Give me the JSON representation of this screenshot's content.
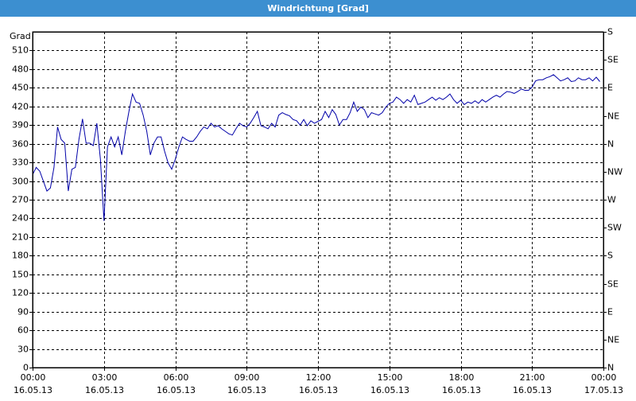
{
  "chart_data": {
    "type": "line",
    "title": "Windrichtung [Grad]",
    "y_label": "Grad",
    "x": [
      0,
      9,
      18,
      27,
      36,
      45,
      54,
      63,
      72,
      81,
      90,
      99,
      108,
      117,
      126,
      135,
      144,
      153,
      162,
      171,
      180,
      189,
      198,
      207,
      216,
      225,
      234,
      243,
      252,
      261,
      270,
      279,
      288,
      297,
      306,
      315,
      324,
      333,
      342,
      351,
      360,
      369,
      378,
      387,
      396,
      405,
      414,
      423,
      432,
      441,
      450,
      459,
      468,
      477,
      486,
      495,
      504,
      513,
      522,
      531,
      540,
      549,
      558,
      567,
      576,
      585,
      594,
      603,
      612,
      621,
      630,
      639,
      648,
      657,
      666,
      675,
      684,
      693,
      702,
      711,
      720,
      729,
      738,
      747,
      756,
      765,
      774,
      783,
      792,
      801,
      810,
      819,
      828,
      837,
      846,
      855,
      864,
      873,
      882,
      891,
      900,
      909,
      918,
      927,
      936,
      945,
      954,
      963,
      972,
      981,
      990,
      999,
      1008,
      1017,
      1026,
      1035,
      1044,
      1053,
      1062,
      1071,
      1080,
      1089,
      1098,
      1107,
      1116,
      1125,
      1134,
      1143,
      1152,
      1161,
      1170,
      1179,
      1188,
      1197,
      1206,
      1215,
      1224,
      1233,
      1242,
      1251,
      1260,
      1269,
      1278,
      1287,
      1296,
      1305,
      1314,
      1323,
      1332,
      1341,
      1350,
      1359,
      1368,
      1377,
      1386,
      1395,
      1404,
      1413,
      1422,
      1431
    ],
    "series": [
      {
        "name": "Windrichtung",
        "color": "#0000a8",
        "values": [
          310,
          322,
          316,
          300,
          284,
          289,
          322,
          387,
          367,
          361,
          284,
          319,
          322,
          367,
          400,
          361,
          361,
          357,
          393,
          335,
          236,
          355,
          371,
          355,
          371,
          342,
          380,
          412,
          440,
          427,
          425,
          406,
          380,
          342,
          361,
          371,
          371,
          348,
          329,
          319,
          335,
          355,
          371,
          367,
          364,
          364,
          371,
          380,
          387,
          384,
          393,
          387,
          389,
          384,
          380,
          376,
          374,
          384,
          393,
          389,
          387,
          393,
          402,
          412,
          389,
          387,
          384,
          393,
          387,
          406,
          410,
          407,
          405,
          399,
          397,
          390,
          399,
          389,
          397,
          393,
          396,
          399,
          412,
          402,
          415,
          407,
          390,
          399,
          399,
          410,
          427,
          412,
          419,
          415,
          402,
          410,
          408,
          406,
          410,
          419,
          425,
          427,
          435,
          431,
          425,
          431,
          427,
          438,
          423,
          425,
          427,
          431,
          435,
          430,
          434,
          431,
          435,
          440,
          431,
          425,
          430,
          423,
          427,
          425,
          429,
          425,
          431,
          427,
          431,
          435,
          438,
          435,
          440,
          444,
          443,
          441,
          444,
          448,
          446,
          446,
          451,
          461,
          463,
          463,
          466,
          468,
          471,
          466,
          461,
          463,
          466,
          460,
          461,
          466,
          463,
          463,
          466,
          461,
          467,
          460
        ]
      }
    ],
    "xlim": [
      0,
      1440
    ],
    "xticks": [
      {
        "value": 0,
        "label": "00:00",
        "date": "16.05.13"
      },
      {
        "value": 180,
        "label": "03:00",
        "date": "16.05.13"
      },
      {
        "value": 360,
        "label": "06:00",
        "date": "16.05.13"
      },
      {
        "value": 540,
        "label": "09:00",
        "date": "16.05.13"
      },
      {
        "value": 720,
        "label": "12:00",
        "date": "16.05.13"
      },
      {
        "value": 900,
        "label": "15:00",
        "date": "16.05.13"
      },
      {
        "value": 1080,
        "label": "18:00",
        "date": "16.05.13"
      },
      {
        "value": 1260,
        "label": "21:00",
        "date": "16.05.13"
      },
      {
        "value": 1440,
        "label": "00:00",
        "date": "17.05.13"
      }
    ],
    "ylim": [
      0,
      540
    ],
    "yticks": [
      0,
      30,
      60,
      90,
      120,
      150,
      180,
      210,
      240,
      270,
      300,
      330,
      360,
      390,
      420,
      450,
      480,
      510
    ],
    "y2lim": [
      0,
      540
    ],
    "y2ticks": [
      {
        "value": 0,
        "label": "N"
      },
      {
        "value": 45,
        "label": "NE"
      },
      {
        "value": 90,
        "label": "E"
      },
      {
        "value": 135,
        "label": "SE"
      },
      {
        "value": 180,
        "label": "S"
      },
      {
        "value": 225,
        "label": "SW"
      },
      {
        "value": 270,
        "label": "W"
      },
      {
        "value": 315,
        "label": "NW"
      },
      {
        "value": 360,
        "label": "N"
      },
      {
        "value": 405,
        "label": "NE"
      },
      {
        "value": 450,
        "label": "E"
      },
      {
        "value": 495,
        "label": "SE"
      },
      {
        "value": 540,
        "label": "S"
      }
    ],
    "grid": true
  }
}
